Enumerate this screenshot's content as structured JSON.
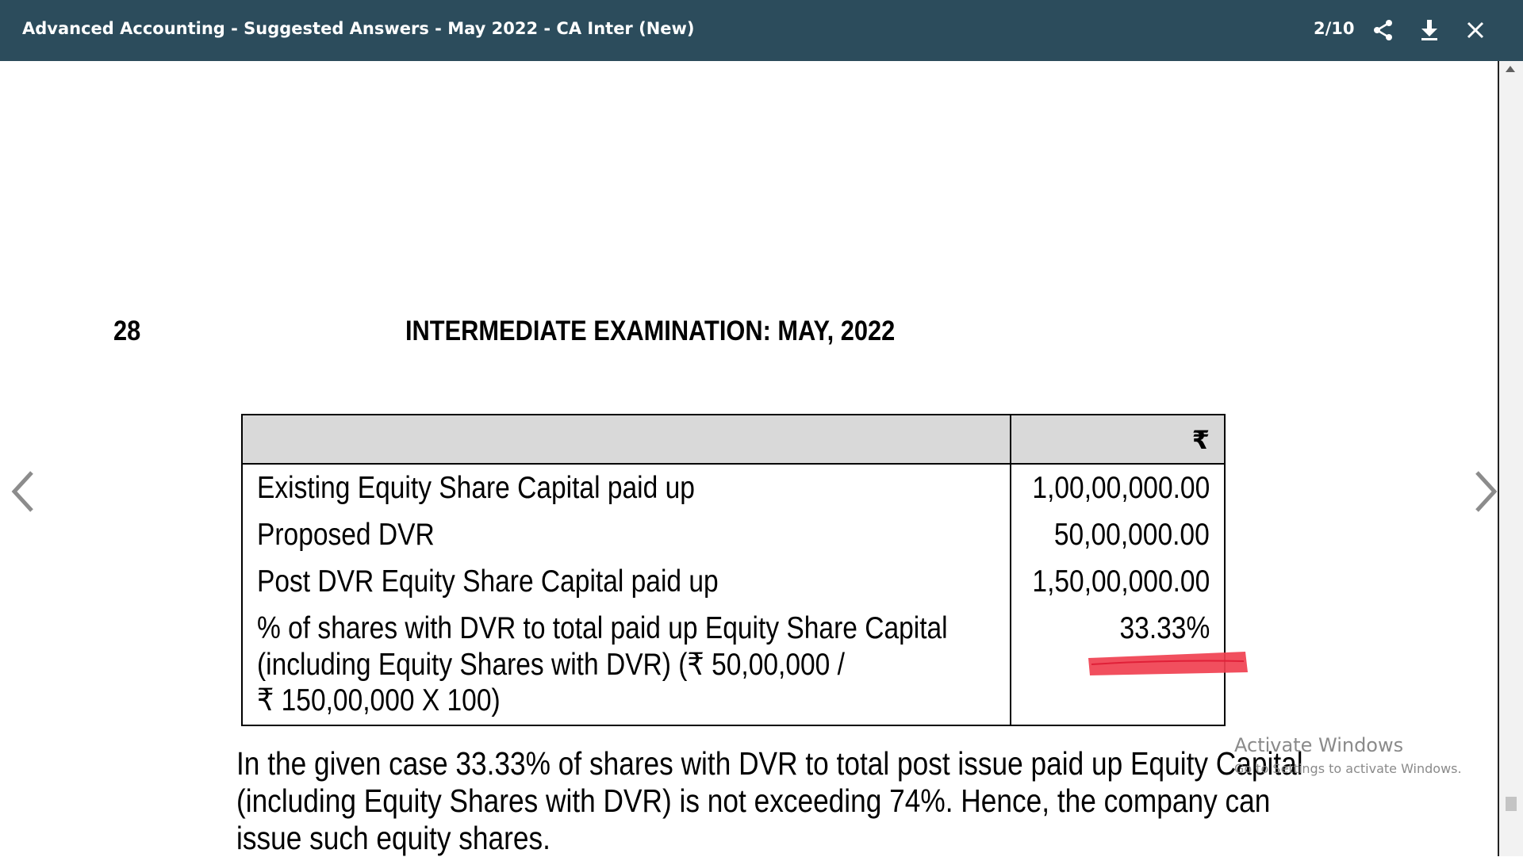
{
  "toolbar": {
    "title": "Advanced Accounting - Suggested Answers - May 2022 - CA Inter (New)",
    "page_indicator": "2/10",
    "icons": [
      "share-icon",
      "download-icon",
      "close-icon"
    ]
  },
  "navigation": {
    "prev_icon": "chevron-left-icon",
    "next_icon": "chevron-right-icon"
  },
  "document": {
    "page_number": "28",
    "heading": "INTERMEDIATE EXAMINATION: MAY, 2022",
    "table": {
      "currency_header": "₹",
      "rows": [
        {
          "label": "Existing Equity Share Capital paid up",
          "value": "1,00,00,000.00"
        },
        {
          "label": "Proposed DVR",
          "value": "50,00,000.00"
        },
        {
          "label": "Post DVR Equity Share Capital paid up",
          "value": "1,50,00,000.00"
        },
        {
          "label_lines": [
            "% of shares with DVR to total paid up Equity Share Capital",
            "(including Equity Shares with DVR) (₹ 50,00,000 /",
            "₹ 150,00,000 X 100)"
          ],
          "value": "33.33%"
        }
      ]
    },
    "paragraph_lines": [
      "In the given case 33.33% of shares with DVR to total post issue paid up Equity Capital",
      "(including Equity Shares with DVR) is not exceeding 74%. Hence, the company can",
      "issue such equity shares."
    ],
    "highlight_color": "#f04050"
  },
  "watermark": {
    "title": "Activate Windows",
    "subtitle": "Go to Settings to activate Windows."
  },
  "colors": {
    "toolbar_bg": "#2c4c5c",
    "table_header_bg": "#d9d9d9"
  }
}
